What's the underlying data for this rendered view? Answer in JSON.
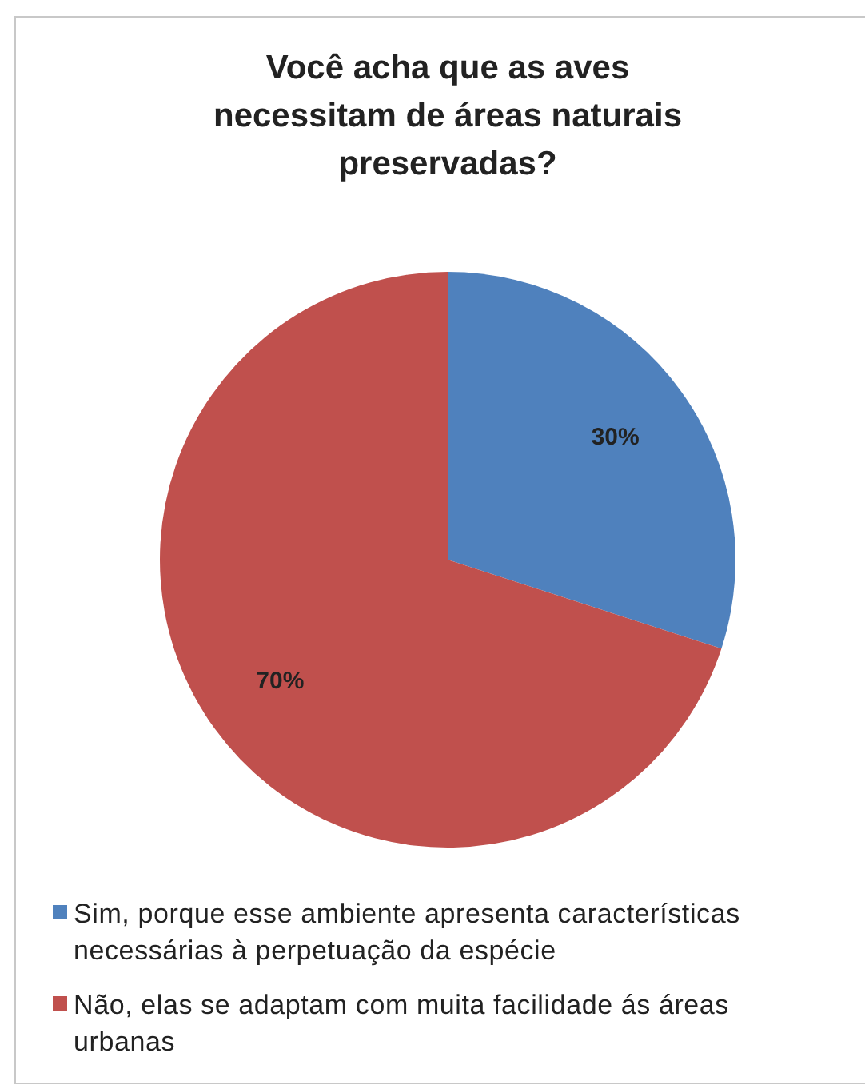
{
  "chart_data": {
    "type": "pie",
    "title": "Você acha que as aves necessitam de áreas naturais preservadas?",
    "categories": [
      "Sim, porque esse ambiente apresenta características necessárias à perpetuação da espécie",
      "Não, elas se adaptam com muita facilidade ás áreas urbanas"
    ],
    "values": [
      30,
      70
    ],
    "colors": [
      "#4f81bd",
      "#c0504d"
    ],
    "value_labels": [
      "30%",
      "70%"
    ],
    "legend": "bottom"
  }
}
